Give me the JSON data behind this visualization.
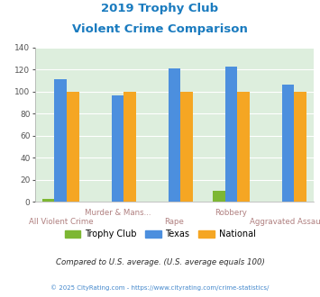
{
  "title_line1": "2019 Trophy Club",
  "title_line2": "Violent Crime Comparison",
  "categories": [
    "All Violent Crime",
    "Murder & Mans...",
    "Rape",
    "Robbery",
    "Aggravated Assault"
  ],
  "trophy_club": [
    3,
    0,
    0,
    10,
    0
  ],
  "texas": [
    111,
    97,
    121,
    123,
    106
  ],
  "national": [
    100,
    100,
    100,
    100,
    100
  ],
  "trophy_club_color": "#7db733",
  "texas_color": "#4c8fde",
  "national_color": "#f5a623",
  "ylim": [
    0,
    140
  ],
  "yticks": [
    0,
    20,
    40,
    60,
    80,
    100,
    120,
    140
  ],
  "title_color": "#1a7bbf",
  "axis_label_color": "#b08080",
  "legend_label1": "Trophy Club",
  "legend_label2": "Texas",
  "legend_label3": "National",
  "footnote1": "Compared to U.S. average. (U.S. average equals 100)",
  "footnote2": "© 2025 CityRating.com - https://www.cityrating.com/crime-statistics/",
  "footnote1_color": "#2c2c2c",
  "footnote2_color": "#4488cc",
  "bg_color": "#ddeedd",
  "bar_width": 0.22,
  "group_positions": [
    0,
    1,
    2,
    3,
    4
  ]
}
